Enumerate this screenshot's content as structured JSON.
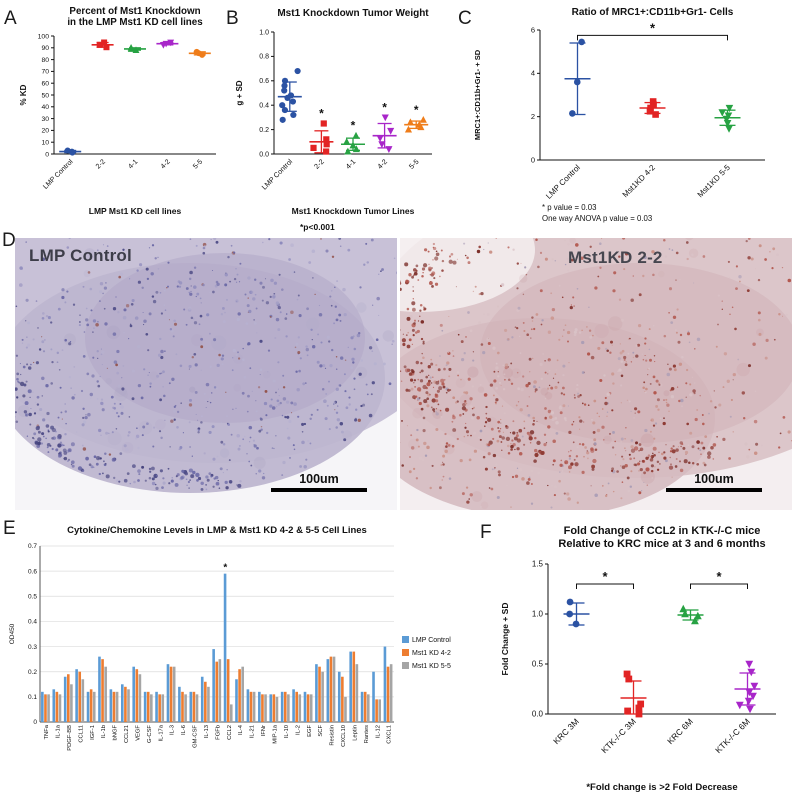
{
  "panels": {
    "a": {
      "letter": "A"
    },
    "b": {
      "letter": "B"
    },
    "c": {
      "letter": "C"
    },
    "d": {
      "letter": "D",
      "images": [
        {
          "label": "LMP Control",
          "scalebar": "100um"
        },
        {
          "label": "Mst1KD 2-2",
          "scalebar": "100um"
        }
      ]
    },
    "e": {
      "letter": "E"
    },
    "f": {
      "letter": "F"
    }
  },
  "chart_data": [
    {
      "panel": "A",
      "type": "scatter",
      "title": [
        "Percent of Mst1 Knockdown",
        "in the LMP Mst1 KD cell lines"
      ],
      "ylabel": "% KD",
      "ylim": [
        0,
        100
      ],
      "yticks": [
        0,
        10,
        20,
        30,
        40,
        50,
        60,
        70,
        80,
        90,
        100
      ],
      "ydecimals": 0,
      "xlabel": "LMP Mst1 KD cell lines",
      "groups": [
        {
          "label": "LMP Control",
          "color": "#2b52a3",
          "marker": "circle",
          "points": [
            1.2,
            2.0,
            3.0
          ],
          "mean": 2.1,
          "sd": 0.9
        },
        {
          "label": "2-2",
          "color": "#e22424",
          "marker": "square",
          "points": [
            90.5,
            92.5,
            94.5
          ],
          "mean": 92.5,
          "sd": 2.0
        },
        {
          "label": "4-1",
          "color": "#27a243",
          "marker": "triangle-up",
          "points": [
            88,
            89,
            90
          ],
          "mean": 89,
          "sd": 1.0
        },
        {
          "label": "4-2",
          "color": "#a826c9",
          "marker": "triangle-down",
          "points": [
            92.5,
            93.5,
            94.5
          ],
          "mean": 93.5,
          "sd": 1.0
        },
        {
          "label": "5-5",
          "color": "#ef7d1a",
          "marker": "circle",
          "points": [
            84,
            85.5,
            86.5
          ],
          "mean": 85.3,
          "sd": 1.3
        }
      ]
    },
    {
      "panel": "B",
      "type": "scatter",
      "title": [
        "Mst1 Knockdown Tumor Weight"
      ],
      "ylabel": "g + SD",
      "ylim": [
        0,
        1
      ],
      "yticks": [
        0,
        0.2,
        0.4,
        0.6,
        0.8,
        1
      ],
      "ydecimals": 1,
      "xlabel": "Mst1 Knockdown Tumor Lines",
      "footnotes": [
        "*p<0.001"
      ],
      "groups": [
        {
          "label": "LMP Control",
          "color": "#2b52a3",
          "marker": "circle",
          "points": [
            0.28,
            0.32,
            0.36,
            0.4,
            0.43,
            0.46,
            0.48,
            0.52,
            0.56,
            0.6,
            0.68
          ],
          "mean": 0.47,
          "sd": 0.12
        },
        {
          "label": "2-2",
          "color": "#e22424",
          "marker": "square",
          "points": [
            0.02,
            0.05,
            0.08,
            0.12,
            0.25
          ],
          "mean": 0.1,
          "sd": 0.09,
          "star": "*"
        },
        {
          "label": "4-1",
          "color": "#27a243",
          "marker": "triangle-up",
          "points": [
            0.02,
            0.04,
            0.07,
            0.1,
            0.15
          ],
          "mean": 0.08,
          "sd": 0.05,
          "star": "*"
        },
        {
          "label": "4-2",
          "color": "#a826c9",
          "marker": "triangle-down",
          "points": [
            0.04,
            0.08,
            0.13,
            0.19,
            0.3
          ],
          "mean": 0.15,
          "sd": 0.1,
          "star": "*"
        },
        {
          "label": "5-5",
          "color": "#ef7d1a",
          "marker": "triangle-up",
          "points": [
            0.2,
            0.22,
            0.24,
            0.26,
            0.28
          ],
          "mean": 0.24,
          "sd": 0.03,
          "star": "*"
        }
      ]
    },
    {
      "panel": "C",
      "type": "scatter",
      "title": [
        "Ratio of MRC1+:CD11b+Gr1- Cells"
      ],
      "ylabel": "MRC1+:CD11b+Gr1- + SD",
      "ylim": [
        0,
        6
      ],
      "yticks": [
        0,
        2,
        4,
        6
      ],
      "ydecimals": 0,
      "footnotes": [
        "* p value = 0.03",
        "One way ANOVA p value = 0.03"
      ],
      "brackets": [
        {
          "from": 0,
          "to": 2,
          "y": 5.75,
          "label": "*"
        }
      ],
      "groups": [
        {
          "label": "LMP Control",
          "color": "#2b52a3",
          "marker": "circle",
          "points": [
            2.15,
            3.6,
            5.45
          ],
          "mean": 3.75,
          "sd": 1.65
        },
        {
          "label": "Mst1KD 4-2",
          "color": "#e22424",
          "marker": "square",
          "points": [
            2.1,
            2.25,
            2.4,
            2.55,
            2.7
          ],
          "mean": 2.4,
          "sd": 0.25
        },
        {
          "label": "Mst1KD 5-5",
          "color": "#27a243",
          "marker": "triangle-down",
          "points": [
            1.45,
            1.7,
            1.9,
            2.05,
            2.2,
            2.4
          ],
          "mean": 1.95,
          "sd": 0.35
        }
      ]
    },
    {
      "panel": "E",
      "type": "bar",
      "title": "Cytokine/Chemokine Levels in LMP & Mst1 KD 4-2 & 5-5 Cell Lines",
      "ylabel": "OD450",
      "ylim": [
        0,
        0.7
      ],
      "yticks": [
        0,
        0.1,
        0.2,
        0.3,
        0.4,
        0.5,
        0.6,
        0.7
      ],
      "categories": [
        "TNFa",
        "IL-1a",
        "PDGF-BB",
        "CCL11",
        "IGF-1",
        "IL-1b",
        "bNGF",
        "CCL21",
        "VEGF",
        "G-CSF",
        "IL-17a",
        "IL-3",
        "IL-6",
        "GM-CSF",
        "IL-13",
        "FGFb",
        "CCL2",
        "IL-4",
        "IL-21",
        "IFNr",
        "MIP-1a",
        "IL-10",
        "IL-2",
        "EGF",
        "SCF",
        "Resistin",
        "CXCL10",
        "Leptin",
        "Rantes",
        "IL-12",
        "CXCL1"
      ],
      "series": [
        {
          "name": "LMP Control",
          "color": "#5b9bd5",
          "values": [
            0.12,
            0.13,
            0.18,
            0.21,
            0.12,
            0.26,
            0.13,
            0.15,
            0.22,
            0.12,
            0.12,
            0.23,
            0.14,
            0.12,
            0.18,
            0.29,
            0.59,
            0.17,
            0.13,
            0.12,
            0.11,
            0.12,
            0.13,
            0.12,
            0.23,
            0.25,
            0.2,
            0.28,
            0.12,
            0.2,
            0.3
          ]
        },
        {
          "name": "Mst1 KD 4-2",
          "color": "#ed7d31",
          "values": [
            0.11,
            0.12,
            0.19,
            0.2,
            0.13,
            0.25,
            0.12,
            0.14,
            0.21,
            0.12,
            0.11,
            0.22,
            0.12,
            0.12,
            0.16,
            0.24,
            0.25,
            0.21,
            0.12,
            0.11,
            0.11,
            0.12,
            0.12,
            0.11,
            0.22,
            0.26,
            0.18,
            0.28,
            0.12,
            0.09,
            0.22
          ]
        },
        {
          "name": "Mst1 KD 5-5",
          "color": "#a5a5a5",
          "values": [
            0.11,
            0.11,
            0.15,
            0.17,
            0.12,
            0.22,
            0.12,
            0.13,
            0.19,
            0.11,
            0.11,
            0.22,
            0.11,
            0.11,
            0.14,
            0.25,
            0.07,
            0.22,
            0.12,
            0.11,
            0.1,
            0.11,
            0.11,
            0.11,
            0.2,
            0.26,
            0.1,
            0.23,
            0.11,
            0.09,
            0.23
          ]
        }
      ],
      "annotations": [
        {
          "category_index": 16,
          "series_index": 0,
          "label": "*"
        }
      ]
    },
    {
      "panel": "F",
      "type": "scatter",
      "title": [
        "Fold Change of CCL2 in KTK-/-C mice",
        "Relative to KRC mice at 3 and 6 months"
      ],
      "ylabel": "Fold Change + SD",
      "ylim": [
        0,
        1.5
      ],
      "yticks": [
        0,
        0.5,
        1,
        1.5
      ],
      "ydecimals": 1,
      "footnotes": [
        "*Fold change is >2 Fold Decrease"
      ],
      "brackets": [
        {
          "from": 0,
          "to": 1,
          "y": 1.3,
          "label": "*"
        },
        {
          "from": 2,
          "to": 3,
          "y": 1.3,
          "label": "*"
        }
      ],
      "groups": [
        {
          "label": "KRC 3M",
          "color": "#2b52a3",
          "marker": "circle",
          "points": [
            0.9,
            1.0,
            1.12
          ],
          "mean": 1.0,
          "sd": 0.11
        },
        {
          "label": "KTK-/-C 3M",
          "color": "#e22424",
          "marker": "square",
          "points": [
            0.0,
            0.03,
            0.06,
            0.1,
            0.35,
            0.4
          ],
          "mean": 0.16,
          "sd": 0.17
        },
        {
          "label": "KRC 6M",
          "color": "#27a243",
          "marker": "triangle-up",
          "points": [
            0.93,
            0.98,
            1.0,
            1.05
          ],
          "mean": 0.99,
          "sd": 0.05
        },
        {
          "label": "KTK-/-C 6M",
          "color": "#a826c9",
          "marker": "triangle-down",
          "points": [
            0.05,
            0.09,
            0.13,
            0.18,
            0.22,
            0.28,
            0.42,
            0.5
          ],
          "mean": 0.25,
          "sd": 0.16
        }
      ]
    }
  ]
}
